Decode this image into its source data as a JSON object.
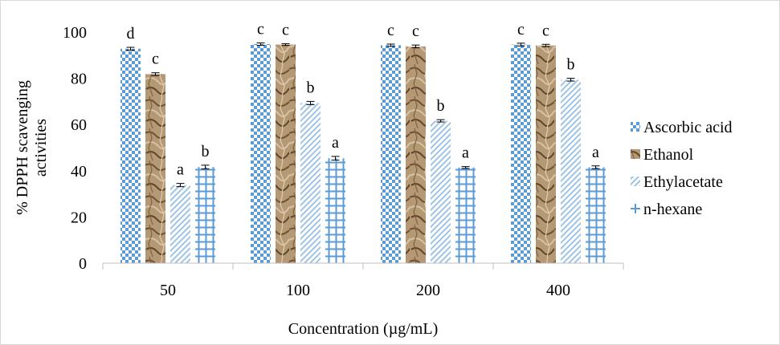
{
  "chart_data": {
    "type": "bar",
    "title": "",
    "xlabel": "Concentration (µg/mL)",
    "ylabel_lines": [
      "% DPPH scavenging",
      "activities"
    ],
    "ylim": [
      0,
      100
    ],
    "yticks": [
      0,
      20,
      40,
      60,
      80,
      100
    ],
    "categories": [
      "50",
      "100",
      "200",
      "400"
    ],
    "grid": false,
    "legend_position": "right",
    "series": [
      {
        "name": "Ascorbic acid",
        "values": [
          92.8,
          94.8,
          94.3,
          94.6
        ],
        "errors": [
          0.6,
          0.5,
          0.5,
          0.6
        ],
        "labels": [
          "d",
          "c",
          "c",
          "c"
        ],
        "pattern": "checker",
        "color": "#5b9bd5"
      },
      {
        "name": "Ethanol",
        "values": [
          81.8,
          94.6,
          93.8,
          94.2
        ],
        "errors": [
          0.6,
          0.4,
          0.6,
          0.5
        ],
        "labels": [
          "c",
          "c",
          "c",
          "c"
        ],
        "pattern": "texture",
        "color": "#a98b64"
      },
      {
        "name": "Ethylacetate",
        "values": [
          33.8,
          69.3,
          61.6,
          79.4
        ],
        "errors": [
          0.7,
          0.7,
          0.5,
          0.6
        ],
        "labels": [
          "a",
          "b",
          "b",
          "b"
        ],
        "pattern": "diagonal",
        "color": "#9dc3e6"
      },
      {
        "name": "n-hexane",
        "values": [
          41.6,
          45.4,
          41.4,
          41.5
        ],
        "errors": [
          0.8,
          0.8,
          0.4,
          0.6
        ],
        "labels": [
          "b",
          "a",
          "a",
          "a"
        ],
        "pattern": "grid",
        "color": "#5b9bd5"
      }
    ]
  }
}
